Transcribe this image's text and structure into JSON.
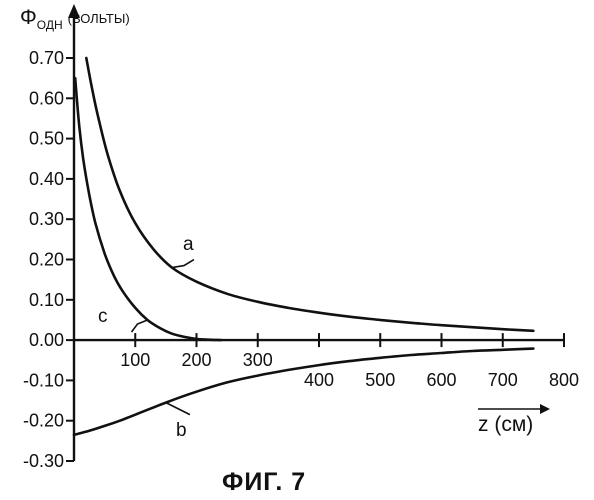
{
  "chart_data": {
    "type": "line",
    "y_axis_title": {
      "symbol": "Φ",
      "subscript": "ОДН",
      "unit": "(ВОЛЬТЫ)"
    },
    "x_axis_title": "z (см)",
    "caption": "ФИГ. 7",
    "xlim": [
      0,
      800
    ],
    "ylim": [
      -0.3,
      0.7
    ],
    "y_ticks": [
      "0.70",
      "0.60",
      "0.50",
      "0.40",
      "0.30",
      "0.20",
      "0.10",
      "0.00",
      "-0.10",
      "-0.20",
      "-0.30"
    ],
    "x_ticks_above_axis": [
      "100",
      "200",
      "300"
    ],
    "x_ticks_below_axis": [
      "400",
      "500",
      "600",
      "700",
      "800"
    ],
    "series": [
      {
        "name": "a",
        "x": [
          20,
          30,
          40,
          55,
          75,
          100,
          130,
          160,
          200,
          250,
          300,
          350,
          400,
          450,
          500,
          550,
          600,
          650,
          700,
          750
        ],
        "y": [
          0.7,
          0.62,
          0.55,
          0.46,
          0.37,
          0.29,
          0.225,
          0.18,
          0.145,
          0.115,
          0.095,
          0.08,
          0.068,
          0.058,
          0.05,
          0.043,
          0.037,
          0.032,
          0.027,
          0.023
        ]
      },
      {
        "name": "b",
        "x": [
          0,
          25,
          50,
          75,
          100,
          125,
          150,
          200,
          250,
          300,
          350,
          400,
          450,
          500,
          550,
          600,
          650,
          700,
          750
        ],
        "y": [
          -0.235,
          -0.225,
          -0.213,
          -0.2,
          -0.185,
          -0.17,
          -0.155,
          -0.128,
          -0.105,
          -0.088,
          -0.074,
          -0.062,
          -0.052,
          -0.044,
          -0.037,
          -0.032,
          -0.027,
          -0.024,
          -0.021
        ]
      },
      {
        "name": "c",
        "x": [
          2,
          8,
          15,
          25,
          35,
          50,
          65,
          80,
          100,
          120,
          140,
          160,
          180,
          200,
          220,
          240
        ],
        "y": [
          0.65,
          0.54,
          0.45,
          0.36,
          0.29,
          0.215,
          0.16,
          0.12,
          0.08,
          0.05,
          0.03,
          0.016,
          0.008,
          0.003,
          0.001,
          0.0
        ]
      }
    ]
  }
}
